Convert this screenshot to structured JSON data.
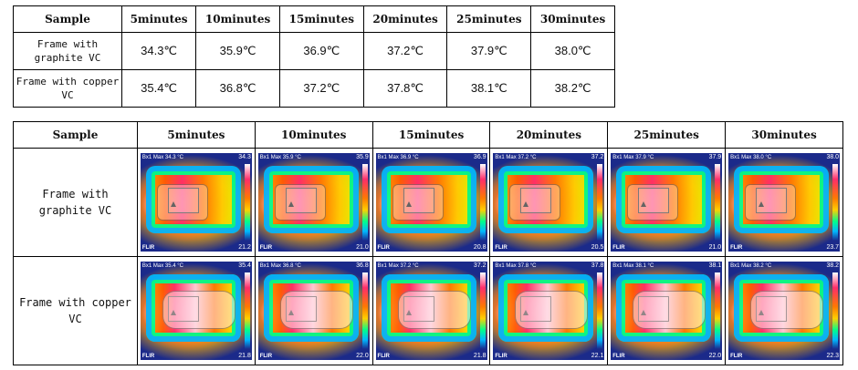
{
  "table1": {
    "headers": [
      "Sample",
      "5minutes",
      "10minutes",
      "15minutes",
      "20minutes",
      "25minutes",
      "30minutes"
    ],
    "rows": [
      {
        "label_line1": "Frame with",
        "label_line2": "graphite VC",
        "values": [
          "34.3℃",
          "35.9℃",
          "36.9℃",
          "37.2℃",
          "37.9℃",
          "38.0℃"
        ]
      },
      {
        "label_line1": "Frame with copper",
        "label_line2": "VC",
        "values": [
          "35.4℃",
          "36.8℃",
          "37.2℃",
          "37.8℃",
          "38.1℃",
          "38.2℃"
        ]
      }
    ]
  },
  "table2": {
    "headers": [
      "Sample",
      "5minutes",
      "10minutes",
      "15minutes",
      "20minutes",
      "25minutes",
      "30minutes"
    ],
    "rows": [
      {
        "label_line1": "Frame with",
        "label_line2": "graphite VC",
        "images": [
          {
            "max": "34.3",
            "min": "21.2",
            "top": "Bx1 Max 34.3 °C"
          },
          {
            "max": "35.9",
            "min": "21.0",
            "top": "Bx1 Max 35.9 °C"
          },
          {
            "max": "36.9",
            "min": "20.8",
            "top": "Bx1 Max 36.9 °C"
          },
          {
            "max": "37.2",
            "min": "20.5",
            "top": "Bx1 Max 37.2 °C"
          },
          {
            "max": "37.9",
            "min": "21.0",
            "top": "Bx1 Max 37.9 °C"
          },
          {
            "max": "38.0",
            "min": "23.7",
            "top": "Bx1 Max 38.0 °C"
          }
        ]
      },
      {
        "label_line1": "Frame with copper",
        "label_line2": "VC",
        "images": [
          {
            "max": "35.4",
            "min": "21.8",
            "top": "Bx1 Max 35.4 °C"
          },
          {
            "max": "36.8",
            "min": "22.0",
            "top": "Bx1 Max 36.8 °C"
          },
          {
            "max": "37.2",
            "min": "21.8",
            "top": "Bx1 Max 37.2 °C"
          },
          {
            "max": "37.8",
            "min": "22.1",
            "top": "Bx1 Max 37.8 °C"
          },
          {
            "max": "38.1",
            "min": "22.0",
            "top": "Bx1 Max 38.1 °C"
          },
          {
            "max": "38.2",
            "min": "22.3",
            "top": "Bx1 Max 38.2 °C"
          }
        ]
      }
    ],
    "logo_text": "FLIR"
  }
}
